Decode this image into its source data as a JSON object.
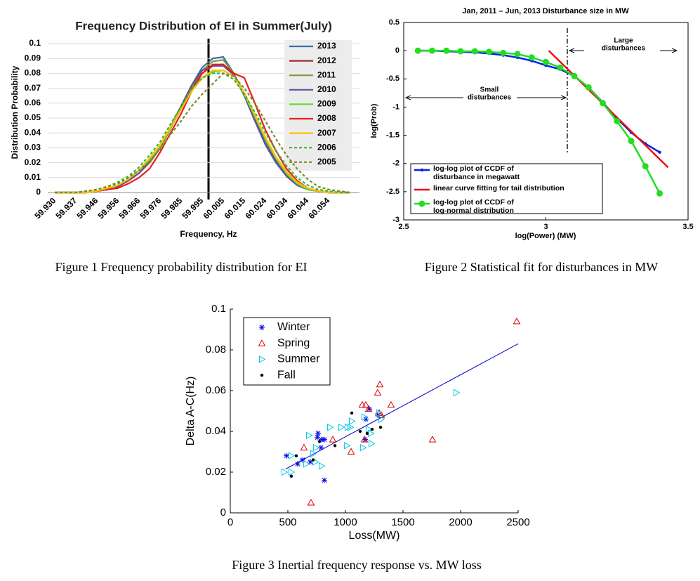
{
  "chart_data": [
    {
      "type": "line",
      "title": "Frequency Distribution of EI in Summer(July)",
      "xlabel": "Frequency, Hz",
      "ylabel": "Distribution Probability",
      "caption": "Figure 1 Frequency probability distribution for EI",
      "categories": [
        "59.930",
        null,
        "59.937",
        null,
        "59.946",
        null,
        "59.956",
        null,
        "59.966",
        null,
        "59.976",
        null,
        "59.985",
        null,
        "59.995",
        null,
        "60.005",
        null,
        "60.015",
        null,
        "60.024",
        null,
        "60.034",
        null,
        "60.044",
        null,
        "60.054",
        null,
        null
      ],
      "ylim": [
        0,
        0.1
      ],
      "yticks": [
        0,
        0.01,
        0.02,
        0.03,
        0.04,
        0.05,
        0.06,
        0.07,
        0.08,
        0.09,
        0.1
      ],
      "grid": true,
      "legend": "right",
      "series": [
        {
          "name": "2013",
          "color": "#3a6ea5",
          "dash": false,
          "values": [
            0,
            0,
            0,
            0,
            0.001,
            0.002,
            0.004,
            0.008,
            0.013,
            0.02,
            0.03,
            0.043,
            0.058,
            0.072,
            0.084,
            0.09,
            0.091,
            0.08,
            0.065,
            0.048,
            0.032,
            0.02,
            0.011,
            0.005,
            0.002,
            0.001,
            0,
            0,
            0
          ]
        },
        {
          "name": "2012",
          "color": "#a52a2a",
          "dash": false,
          "values": [
            0,
            0,
            0,
            0,
            0.001,
            0.002,
            0.004,
            0.008,
            0.013,
            0.02,
            0.03,
            0.043,
            0.057,
            0.07,
            0.08,
            0.085,
            0.086,
            0.08,
            0.066,
            0.05,
            0.034,
            0.022,
            0.012,
            0.006,
            0.002,
            0.001,
            0,
            0,
            0
          ]
        },
        {
          "name": "2011",
          "color": "#7a9a3a",
          "dash": false,
          "values": [
            0,
            0,
            0,
            0,
            0.001,
            0.002,
            0.004,
            0.008,
            0.013,
            0.02,
            0.031,
            0.044,
            0.058,
            0.071,
            0.082,
            0.088,
            0.089,
            0.08,
            0.066,
            0.05,
            0.034,
            0.021,
            0.012,
            0.006,
            0.002,
            0.001,
            0,
            0,
            0
          ]
        },
        {
          "name": "2010",
          "color": "#6a4c9c",
          "dash": false,
          "values": [
            0,
            0,
            0,
            0,
            0.001,
            0.002,
            0.004,
            0.008,
            0.013,
            0.021,
            0.031,
            0.044,
            0.058,
            0.072,
            0.082,
            0.085,
            0.085,
            0.079,
            0.065,
            0.049,
            0.033,
            0.021,
            0.011,
            0.005,
            0.002,
            0.001,
            0,
            0,
            0
          ]
        },
        {
          "name": "2009",
          "color": "#66dd33",
          "dash": false,
          "values": [
            0,
            0,
            0,
            0,
            0.001,
            0.002,
            0.005,
            0.009,
            0.015,
            0.022,
            0.031,
            0.043,
            0.056,
            0.068,
            0.077,
            0.081,
            0.082,
            0.078,
            0.066,
            0.051,
            0.036,
            0.023,
            0.013,
            0.006,
            0.002,
            0.001,
            0,
            0,
            0
          ]
        },
        {
          "name": "2008",
          "color": "#ee1c1c",
          "dash": false,
          "values": [
            0,
            0,
            0,
            0,
            0.001,
            0.002,
            0.003,
            0.006,
            0.01,
            0.016,
            0.027,
            0.04,
            0.053,
            0.068,
            0.08,
            0.086,
            0.086,
            0.08,
            0.077,
            0.06,
            0.042,
            0.028,
            0.016,
            0.008,
            0.003,
            0.001,
            0,
            0,
            0
          ]
        },
        {
          "name": "2007",
          "color": "#ffc000",
          "dash": false,
          "values": [
            0,
            0,
            0,
            0,
            0.001,
            0.003,
            0.005,
            0.009,
            0.015,
            0.023,
            0.032,
            0.044,
            0.056,
            0.068,
            0.077,
            0.082,
            0.082,
            0.078,
            0.067,
            0.052,
            0.037,
            0.024,
            0.014,
            0.007,
            0.003,
            0.001,
            0,
            0,
            0
          ]
        },
        {
          "name": "2006",
          "color": "#33bb33",
          "dash": true,
          "values": [
            0,
            0,
            0,
            0.001,
            0.002,
            0.004,
            0.007,
            0.011,
            0.017,
            0.025,
            0.034,
            0.046,
            0.058,
            0.07,
            0.077,
            0.08,
            0.08,
            0.076,
            0.066,
            0.054,
            0.04,
            0.028,
            0.018,
            0.01,
            0.005,
            0.002,
            0.001,
            0,
            0
          ]
        },
        {
          "name": "2005",
          "color": "#7a8a2a",
          "dash": true,
          "values": [
            0,
            0,
            0,
            0.001,
            0.002,
            0.004,
            0.006,
            0.01,
            0.015,
            0.021,
            0.029,
            0.039,
            0.048,
            0.058,
            0.066,
            0.073,
            0.08,
            0.078,
            0.07,
            0.06,
            0.048,
            0.036,
            0.025,
            0.016,
            0.009,
            0.004,
            0.002,
            0.001,
            0
          ]
        }
      ]
    },
    {
      "type": "line",
      "title": "Jan, 2011 – Jun, 2013 Disturbance size in MW",
      "xlabel": "log(Power) (MW)",
      "ylabel": "log(Prob)",
      "caption": "Figure 2 Statistical fit for disturbances in MW",
      "xlim": [
        2.5,
        3.5
      ],
      "xticks": [
        2.5,
        3,
        3.5
      ],
      "ylim": [
        -3,
        0.5
      ],
      "yticks": [
        -3,
        -2.5,
        -2,
        -1.5,
        -1,
        -0.5,
        0,
        0.5
      ],
      "legend": "lower left",
      "annotations": [
        {
          "lines": [
            "Large",
            "disturbances"
          ]
        },
        {
          "lines": [
            "Small",
            "disturbances"
          ]
        }
      ],
      "series": [
        {
          "name": "log-log plot of CCDF of\ndisturbance in megawatt",
          "color": "#0022ee",
          "marker": "dot",
          "x": [
            2.55,
            2.6,
            2.65,
            2.7,
            2.75,
            2.8,
            2.85,
            2.9,
            2.95,
            3.0,
            3.05,
            3.1,
            3.15,
            3.2,
            3.25,
            3.3,
            3.35,
            3.4
          ],
          "values": [
            0,
            0,
            -0.01,
            -0.02,
            -0.03,
            -0.05,
            -0.08,
            -0.12,
            -0.18,
            -0.26,
            -0.33,
            -0.45,
            -0.65,
            -0.92,
            -1.2,
            -1.45,
            -1.65,
            -1.8
          ]
        },
        {
          "name": "linear curve fitting for tail distribution",
          "color": "#ee1111",
          "marker": "none",
          "x": [
            3.01,
            3.43
          ],
          "values": [
            0,
            -2.07
          ]
        },
        {
          "name": "log-log plot of CCDF of\nlog-normal distribution",
          "color": "#22dd22",
          "marker": "circle",
          "x": [
            2.55,
            2.6,
            2.65,
            2.7,
            2.75,
            2.8,
            2.85,
            2.9,
            2.95,
            3.0,
            3.05,
            3.1,
            3.15,
            3.2,
            3.25,
            3.3,
            3.35,
            3.4
          ],
          "values": [
            0,
            0,
            0,
            -0.01,
            -0.01,
            -0.02,
            -0.04,
            -0.06,
            -0.12,
            -0.2,
            -0.3,
            -0.45,
            -0.65,
            -0.93,
            -1.25,
            -1.6,
            -2.05,
            -2.53
          ]
        }
      ]
    },
    {
      "type": "scatter",
      "xlabel": "Loss(MW)",
      "ylabel": "Delta A-C(Hz)",
      "caption": "Figure 3 Inertial frequency response vs. MW loss",
      "xlim": [
        0,
        2500
      ],
      "xticks": [
        0,
        500,
        1000,
        1500,
        2000,
        2500
      ],
      "ylim": [
        0,
        0.1
      ],
      "yticks": [
        0,
        0.02,
        0.04,
        0.06,
        0.08,
        0.1
      ],
      "legend": "upper left",
      "fit": {
        "color": "#0000cc",
        "x": [
          480,
          2500
        ],
        "values": [
          0.0215,
          0.083
        ]
      },
      "series": [
        {
          "name": "Winter",
          "color": "#0000ee",
          "marker": "star",
          "x": [
            488,
            585,
            628,
            695,
            762,
            793,
            817,
            817,
            787,
            1171,
            1177,
            1207,
            1280,
            756
          ],
          "values": [
            0.028,
            0.024,
            0.026,
            0.025,
            0.039,
            0.036,
            0.036,
            0.016,
            0.032,
            0.036,
            0.046,
            0.051,
            0.048,
            0.037
          ]
        },
        {
          "name": "Spring",
          "color": "#dd0000",
          "marker": "triangle-up",
          "x": [
            701,
            640,
            890,
            1049,
            1146,
            1177,
            1201,
            1280,
            1299,
            1311,
            1396,
            1756,
            1165,
            2488,
            1293
          ],
          "values": [
            0.005,
            0.032,
            0.036,
            0.03,
            0.053,
            0.053,
            0.051,
            0.059,
            0.063,
            0.048,
            0.053,
            0.036,
            0.036,
            0.094,
            0.049
          ]
        },
        {
          "name": "Summer",
          "color": "#00c8e8",
          "marker": "triangle-right",
          "x": [
            470,
            530,
            530,
            659,
            683,
            738,
            793,
            744,
            963,
            1018,
            1043,
            1012,
            1055,
            1152,
            1165,
            1201,
            1220,
            1226,
            1293,
            1311,
            1963,
            866,
            720
          ],
          "values": [
            0.02,
            0.02,
            0.028,
            0.024,
            0.038,
            0.025,
            0.023,
            0.032,
            0.042,
            0.042,
            0.042,
            0.033,
            0.045,
            0.032,
            0.047,
            0.041,
            0.039,
            0.034,
            0.049,
            0.046,
            0.059,
            0.042,
            0.029
          ]
        },
        {
          "name": "Fall",
          "color": "#000000",
          "marker": "dot",
          "x": [
            530,
            573,
            720,
            774,
            909,
            1055,
            1128,
            1189,
            1232,
            1305
          ],
          "values": [
            0.018,
            0.028,
            0.026,
            0.035,
            0.033,
            0.049,
            0.04,
            0.039,
            0.041,
            0.042
          ]
        }
      ]
    }
  ]
}
